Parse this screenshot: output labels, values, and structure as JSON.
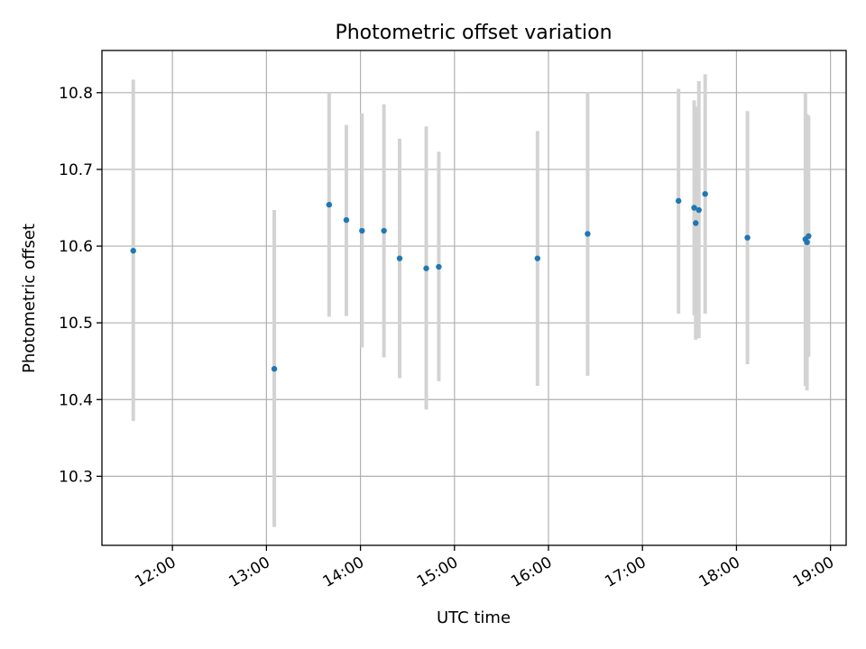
{
  "chart_data": {
    "type": "scatter",
    "title": "Photometric offset variation",
    "xlabel": "UTC time",
    "ylabel": "Photometric offset",
    "xlim": [
      "11:15",
      "19:10"
    ],
    "ylim": [
      10.21,
      10.855
    ],
    "xticks": [
      "12:00",
      "13:00",
      "14:00",
      "15:00",
      "16:00",
      "17:00",
      "18:00",
      "19:00"
    ],
    "yticks": [
      "10.3",
      "10.4",
      "10.5",
      "10.6",
      "10.7",
      "10.8"
    ],
    "grid": true,
    "colors": {
      "point": "#1f77b4",
      "errorbar": "#d3d3d3"
    },
    "series": [
      {
        "points": [
          {
            "x": "11:35",
            "y": 10.594,
            "ymin": 10.372,
            "ymax": 10.817
          },
          {
            "x": "13:05",
            "y": 10.44,
            "ymin": 10.234,
            "ymax": 10.647
          },
          {
            "x": "13:40",
            "y": 10.654,
            "ymin": 10.508,
            "ymax": 10.8
          },
          {
            "x": "13:51",
            "y": 10.634,
            "ymin": 10.509,
            "ymax": 10.758
          },
          {
            "x": "14:01",
            "y": 10.62,
            "ymin": 10.468,
            "ymax": 10.773
          },
          {
            "x": "14:15",
            "y": 10.62,
            "ymin": 10.455,
            "ymax": 10.785
          },
          {
            "x": "14:25",
            "y": 10.584,
            "ymin": 10.428,
            "ymax": 10.74
          },
          {
            "x": "14:42",
            "y": 10.571,
            "ymin": 10.387,
            "ymax": 10.756
          },
          {
            "x": "14:50",
            "y": 10.573,
            "ymin": 10.424,
            "ymax": 10.723
          },
          {
            "x": "15:53",
            "y": 10.584,
            "ymin": 10.418,
            "ymax": 10.75
          },
          {
            "x": "16:25",
            "y": 10.616,
            "ymin": 10.431,
            "ymax": 10.801
          },
          {
            "x": "17:23",
            "y": 10.659,
            "ymin": 10.512,
            "ymax": 10.805
          },
          {
            "x": "17:33",
            "y": 10.65,
            "ymin": 10.51,
            "ymax": 10.79
          },
          {
            "x": "17:34",
            "y": 10.63,
            "ymin": 10.478,
            "ymax": 10.782
          },
          {
            "x": "17:36",
            "y": 10.647,
            "ymin": 10.48,
            "ymax": 10.815
          },
          {
            "x": "17:40",
            "y": 10.668,
            "ymin": 10.512,
            "ymax": 10.824
          },
          {
            "x": "18:07",
            "y": 10.611,
            "ymin": 10.446,
            "ymax": 10.776
          },
          {
            "x": "18:44",
            "y": 10.609,
            "ymin": 10.418,
            "ymax": 10.8
          },
          {
            "x": "18:45",
            "y": 10.605,
            "ymin": 10.412,
            "ymax": 10.772
          },
          {
            "x": "18:46",
            "y": 10.613,
            "ymin": 10.456,
            "ymax": 10.77
          }
        ]
      }
    ]
  }
}
